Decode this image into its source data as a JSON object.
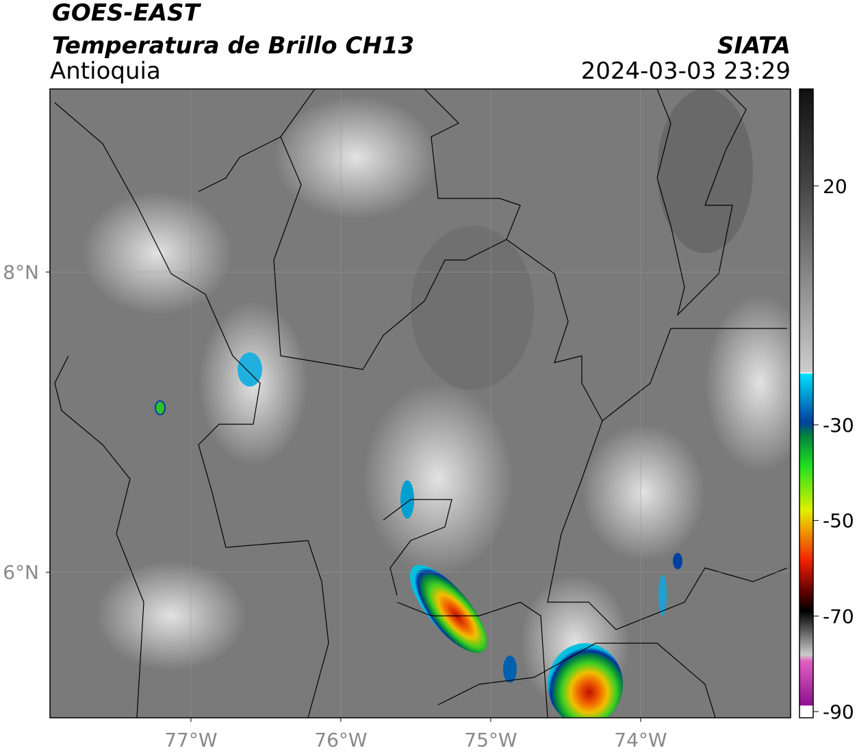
{
  "chart_data": {
    "type": "map",
    "title": "GOES-EAST",
    "subtitle": "Temperatura de Brillo CH13",
    "region": "Antioquia",
    "source": "SIATA",
    "datetime": "2024-03-03 23:29",
    "xlim": [
      -77.94,
      -73.0
    ],
    "ylim": [
      5.03,
      9.22
    ],
    "xticks": [
      {
        "value": -77,
        "label": "77°W"
      },
      {
        "value": -76,
        "label": "76°W"
      },
      {
        "value": -75,
        "label": "75°W"
      },
      {
        "value": -74,
        "label": "74°W"
      }
    ],
    "yticks": [
      {
        "value": 6,
        "label": "6°N"
      },
      {
        "value": 8,
        "label": "8°N"
      }
    ],
    "grid": true,
    "colorbar": {
      "lim": [
        -91.3,
        40.3
      ],
      "ticks": [
        20,
        -30,
        -50,
        -70,
        -90
      ]
    }
  }
}
